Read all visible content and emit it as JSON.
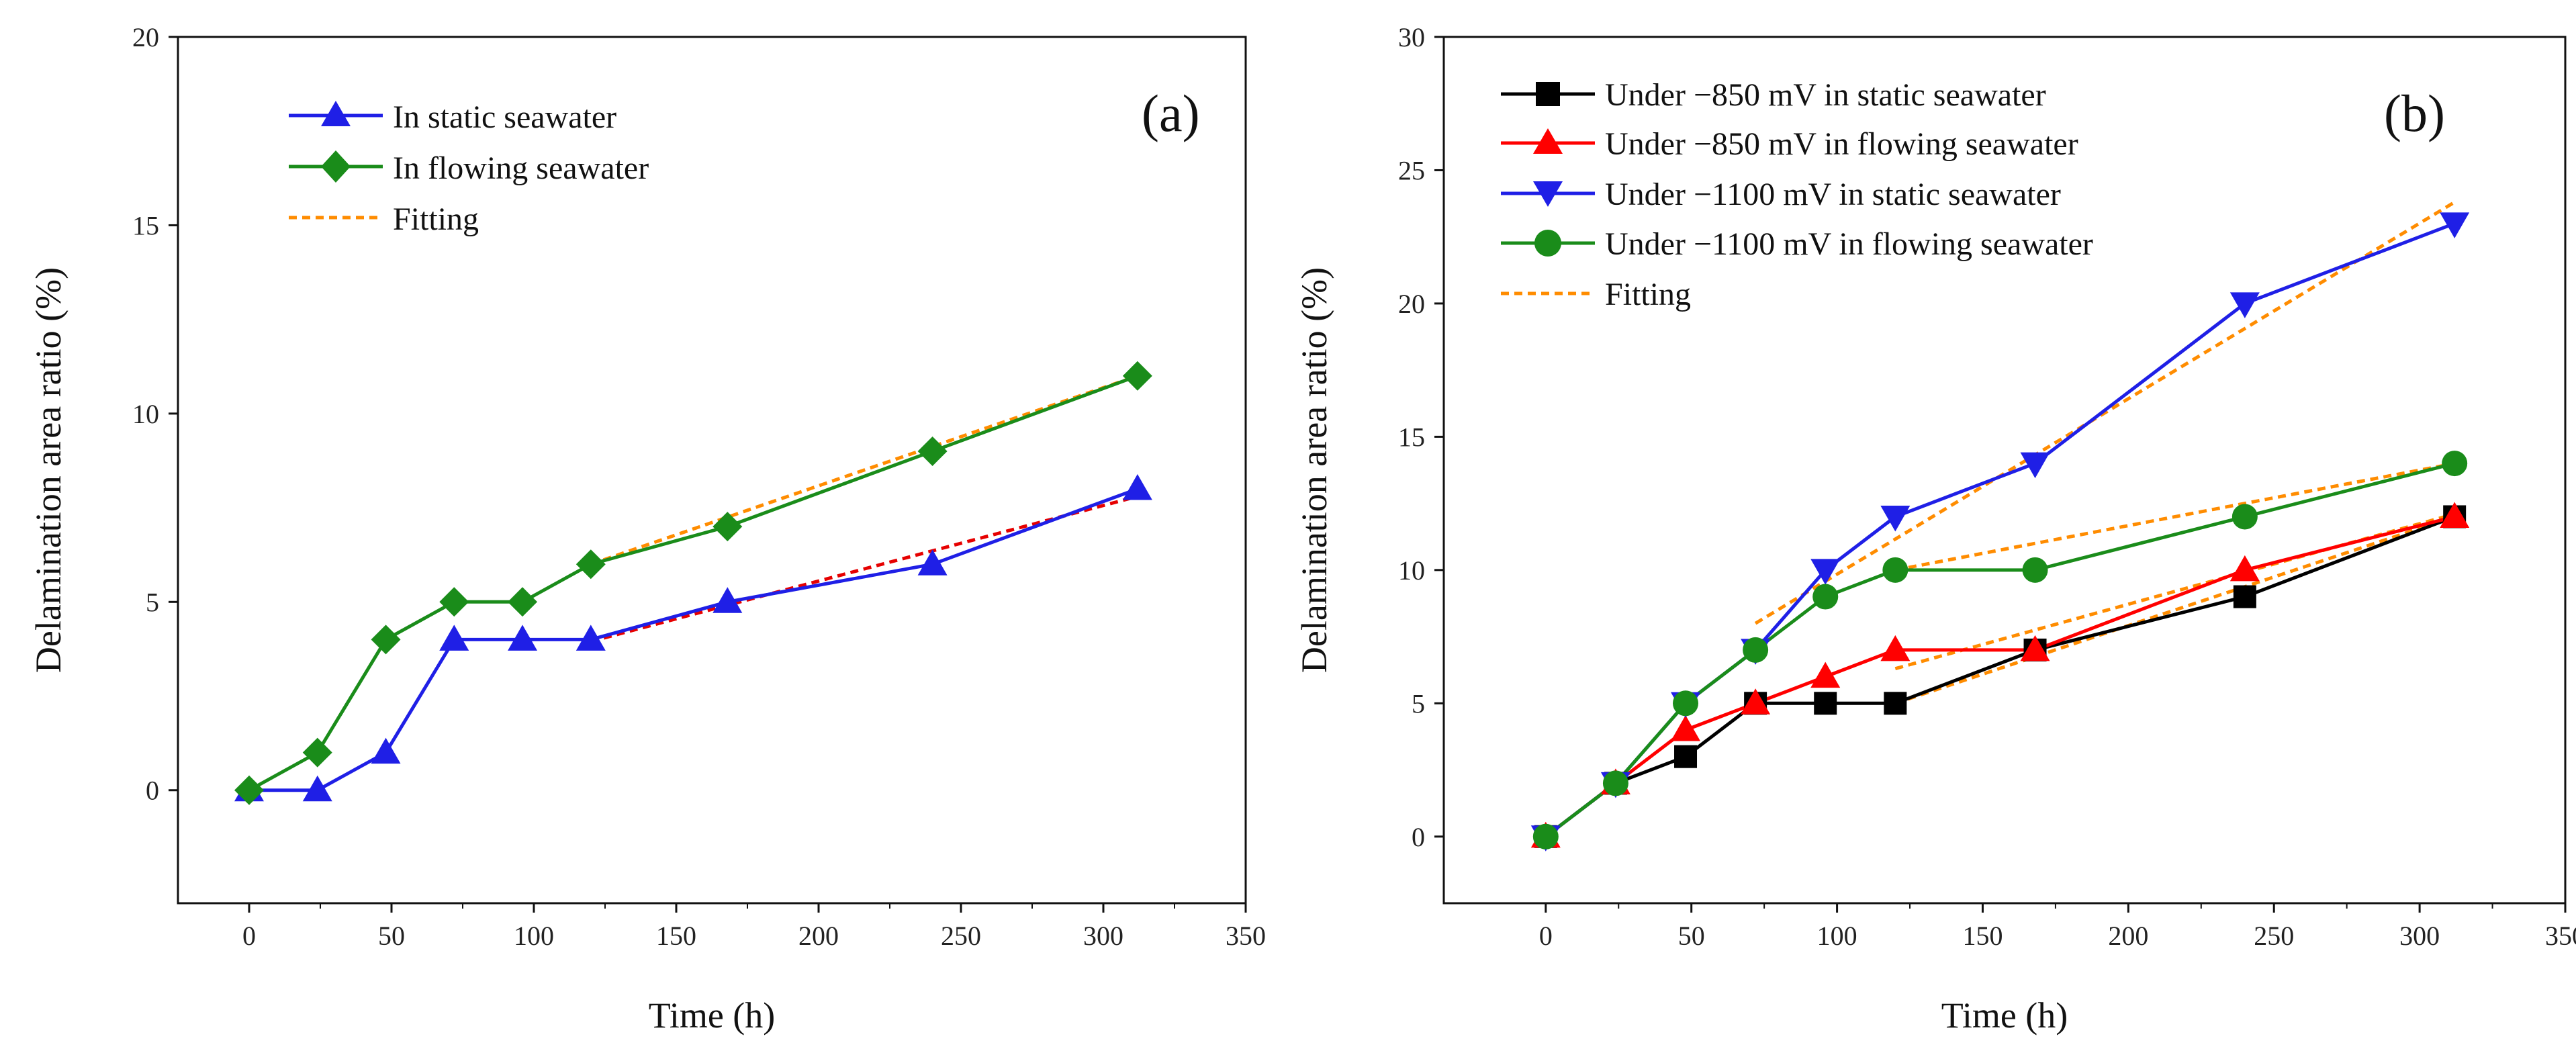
{
  "chart_data": [
    {
      "type": "line",
      "panel_label": "(a)",
      "xlabel": "Time (h)",
      "ylabel": "Delamination area ratio (%)",
      "xlim": [
        -25,
        350
      ],
      "ylim": [
        -3,
        20
      ],
      "xticks": [
        0,
        50,
        100,
        150,
        200,
        250,
        300,
        350
      ],
      "yticks": [
        0,
        5,
        10,
        15,
        20
      ],
      "legend_position": "top-left",
      "series": [
        {
          "name": "In static seawater",
          "color": "#1f1fe6",
          "marker": "triangle-up",
          "x": [
            0,
            24,
            48,
            72,
            96,
            120,
            168,
            240,
            312
          ],
          "y": [
            0,
            0,
            1,
            4,
            4,
            4,
            5,
            6,
            8
          ]
        },
        {
          "name": "In flowing seawater",
          "color": "#1a8c1a",
          "marker": "diamond",
          "x": [
            0,
            24,
            48,
            72,
            96,
            120,
            168,
            240,
            312
          ],
          "y": [
            0,
            1,
            4,
            5,
            5,
            6,
            7,
            9,
            11
          ]
        }
      ],
      "fits": [
        {
          "color": "#ff8c00",
          "x": [
            120,
            312
          ],
          "y": [
            6,
            11
          ]
        },
        {
          "color": "#e60000",
          "x": [
            120,
            312
          ],
          "y": [
            3.95,
            7.8
          ]
        }
      ],
      "fit_legend": {
        "name": "Fitting",
        "color": "#ff8c00"
      }
    },
    {
      "type": "line",
      "panel_label": "(b)",
      "xlabel": "Time (h)",
      "ylabel": "Delamination area ratio (%)",
      "xlim": [
        -35,
        350
      ],
      "ylim": [
        -2.5,
        30
      ],
      "xticks": [
        0,
        50,
        100,
        150,
        200,
        250,
        300,
        350
      ],
      "yticks": [
        0,
        5,
        10,
        15,
        20,
        25,
        30
      ],
      "legend_position": "top-left",
      "series": [
        {
          "name": "Under −850 mV in static seawater",
          "color": "#000000",
          "marker": "square",
          "x": [
            0,
            24,
            48,
            72,
            96,
            120,
            168,
            240,
            312
          ],
          "y": [
            0,
            2,
            3,
            5,
            5,
            5,
            7,
            9,
            12
          ]
        },
        {
          "name": "Under −850 mV in flowing seawater",
          "color": "#ff0000",
          "marker": "triangle-up",
          "x": [
            0,
            24,
            48,
            72,
            96,
            120,
            168,
            240,
            312
          ],
          "y": [
            0,
            2,
            4,
            5,
            6,
            7,
            7,
            10,
            12
          ]
        },
        {
          "name": "Under −1100 mV in static seawater",
          "color": "#1f1fe6",
          "marker": "triangle-down",
          "x": [
            0,
            24,
            48,
            72,
            96,
            120,
            168,
            240,
            312
          ],
          "y": [
            0,
            2,
            5,
            7,
            10,
            12,
            14,
            20,
            23
          ]
        },
        {
          "name": "Under −1100 mV in flowing seawater",
          "color": "#1a8c1a",
          "marker": "circle",
          "x": [
            0,
            24,
            48,
            72,
            96,
            120,
            168,
            240,
            312
          ],
          "y": [
            0,
            2,
            5,
            7,
            9,
            10,
            10,
            12,
            14
          ]
        }
      ],
      "fits": [
        {
          "color": "#ff8c00",
          "x": [
            72,
            312
          ],
          "y": [
            8,
            23.8
          ]
        },
        {
          "color": "#ff8c00",
          "x": [
            120,
            312
          ],
          "y": [
            6.3,
            12.1
          ]
        },
        {
          "color": "#ff8c00",
          "x": [
            120,
            312
          ],
          "y": [
            10,
            14
          ]
        },
        {
          "color": "#ff8c00",
          "x": [
            120,
            312
          ],
          "y": [
            5,
            12
          ]
        }
      ],
      "fit_legend": {
        "name": "Fitting",
        "color": "#ff8c00"
      }
    }
  ]
}
